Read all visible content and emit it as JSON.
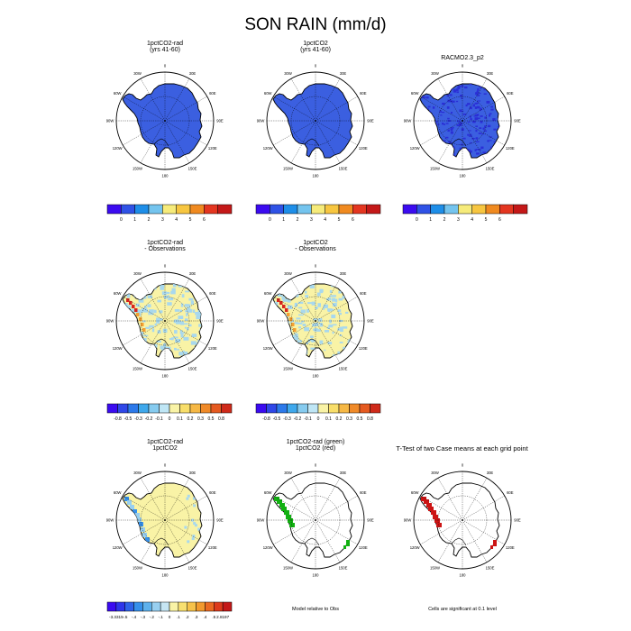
{
  "page_title": "SON RAIN (mm/d)",
  "colors": {
    "land_blue": "#3b5fe0",
    "dark_blue": "#2a2fd6",
    "yellow": "#f9f3a6",
    "light_blue": "#a8d8ee",
    "orange": "#f4a030",
    "red": "#d7261e",
    "sig_green": "#12b012",
    "sig_red": "#cc1414"
  },
  "plot_labels": {
    "lon_labels": [
      "0",
      "30E",
      "60E",
      "90E",
      "120E",
      "150E",
      "180",
      "150W",
      "120W",
      "90W",
      "60W",
      "30W"
    ]
  },
  "panels": [
    {
      "id": "p1",
      "title_lines": [
        "1pctCO2-rad",
        "(yrs 41-60)"
      ],
      "fill": "mean"
    },
    {
      "id": "p2",
      "title_lines": [
        "1pctCO2",
        "(yrs 41-60)"
      ],
      "fill": "mean"
    },
    {
      "id": "p3",
      "title_lines": [
        "RACMO2.3_p2"
      ],
      "fill": "obs"
    },
    {
      "id": "p4",
      "title_lines": [
        "1pctCO2-rad",
        "- Observations"
      ],
      "fill": "bias"
    },
    {
      "id": "p5",
      "title_lines": [
        "1pctCO2",
        "- Observations"
      ],
      "fill": "bias"
    },
    {
      "id": "p6",
      "title_lines": [
        "1pctCO2-rad",
        "1pctCO2"
      ],
      "fill": "diff"
    },
    {
      "id": "p7",
      "title_lines": [
        "1pctCO2-rad (green)",
        "1pctCO2 (red)"
      ],
      "fill": "sigcompare"
    },
    {
      "id": "p8",
      "title_lines": [
        "T-Test of two Case means at each grid point"
      ],
      "fill": "ttest"
    }
  ],
  "colorbars": {
    "mean": {
      "ticks": [
        "0",
        "1",
        "2",
        "3",
        "4",
        "5",
        "6"
      ],
      "colors": [
        "#3b0bf0",
        "#2f52e6",
        "#1e8ee8",
        "#74c4ee",
        "#f6eb7a",
        "#f7c640",
        "#f08a20",
        "#e43620",
        "#c41818"
      ]
    },
    "bias": {
      "ticks": [
        "-0.8",
        "-0.5",
        "-0.3",
        "-0.2",
        "-0.1",
        "0",
        "0.1",
        "0.2",
        "0.3",
        "0.5",
        "0.8"
      ],
      "colors": [
        "#3b0bf0",
        "#2f47e8",
        "#2c79ea",
        "#3fa8ec",
        "#86cbef",
        "#bfe6f5",
        "#f9f3a6",
        "#f8de6a",
        "#f6b845",
        "#f08a28",
        "#e55a20",
        "#cf2a1a"
      ]
    },
    "diff": {
      "ticks": [
        "-3.3315",
        "-.5",
        "-.4",
        "-.3",
        "-.2",
        "-.1",
        "0",
        ".1",
        ".2",
        ".3",
        ".4",
        ".5",
        "2.8197"
      ],
      "colors": [
        "#3b0bf0",
        "#2f35ea",
        "#2f62e8",
        "#3690ea",
        "#5eb1ec",
        "#98cff0",
        "#c6e5f3",
        "#f9f3a6",
        "#f8e070",
        "#f6c24a",
        "#f29a2e",
        "#ea6a22",
        "#dd3a1c",
        "#c41818"
      ]
    }
  },
  "footnotes": {
    "model_relative": "Model relative to Obs",
    "significance": "Cells are significant at 0.1 level"
  }
}
